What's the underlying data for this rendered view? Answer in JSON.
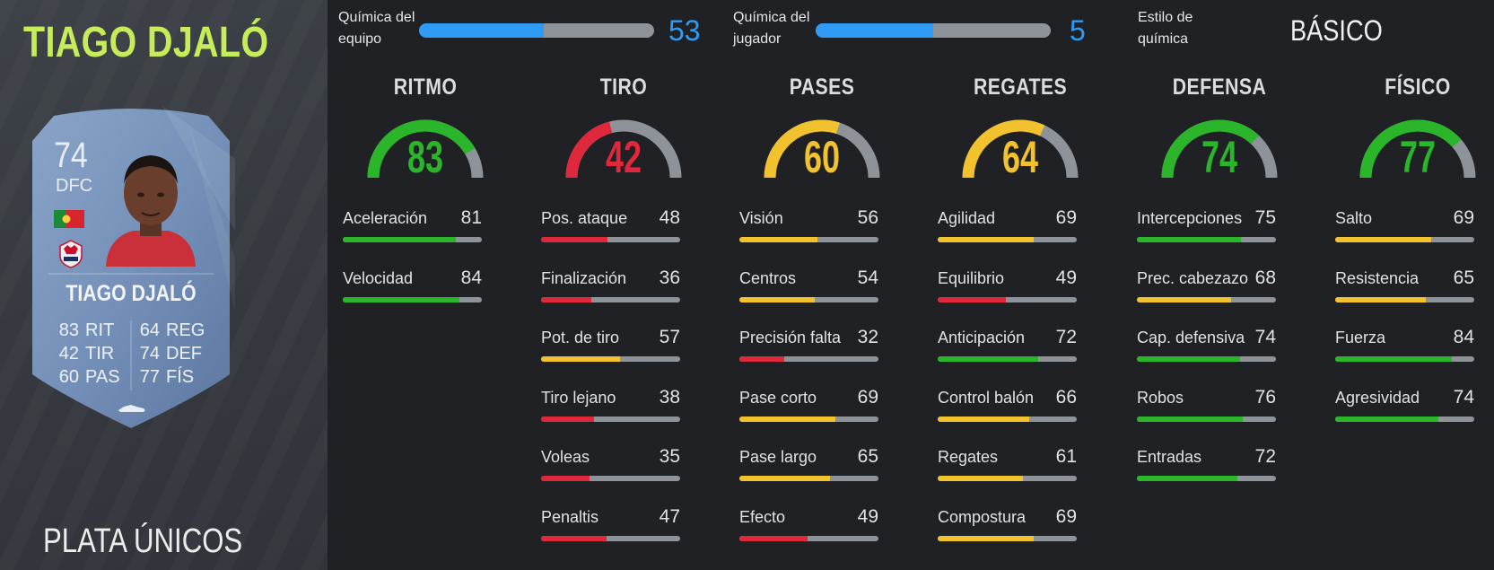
{
  "player": {
    "title": "TIAGO DJALÓ",
    "version": "PLATA ÚNICOS",
    "card": {
      "rating": "74",
      "position": "DFC",
      "name": "TIAGO DJALÓ",
      "flag_icon": "portugal-flag-icon",
      "club_icon": "losc-lille-badge-icon",
      "summary": [
        {
          "val": "83",
          "lbl": "RIT"
        },
        {
          "val": "64",
          "lbl": "REG"
        },
        {
          "val": "42",
          "lbl": "TIR"
        },
        {
          "val": "74",
          "lbl": "DEF"
        },
        {
          "val": "60",
          "lbl": "PAS"
        },
        {
          "val": "77",
          "lbl": "FÍS"
        }
      ]
    }
  },
  "chemistry": {
    "team_label_1": "Química del",
    "team_label_2": "equipo",
    "team_value": "53",
    "team_fill": 0.53,
    "player_label_1": "Química del",
    "player_label_2": "jugador",
    "player_value": "5",
    "player_fill": 0.5,
    "style_label_1": "Estilo de",
    "style_label_2": "química",
    "style_value": "BÁSICO"
  },
  "colors": {
    "green": "#2bb52b",
    "yellow": "#f2c12e",
    "red": "#e0283c",
    "track": "#8e9399",
    "accent_blue": "#2f9bf4",
    "title_green": "#c7ec5a"
  },
  "categories": [
    {
      "title": "RITMO",
      "value": "83",
      "tier": "green",
      "stats": [
        {
          "label": "Aceleración",
          "value": "81"
        },
        {
          "label": "Velocidad",
          "value": "84"
        }
      ]
    },
    {
      "title": "TIRO",
      "value": "42",
      "tier": "red",
      "stats": [
        {
          "label": "Pos. ataque",
          "value": "48"
        },
        {
          "label": "Finalización",
          "value": "36"
        },
        {
          "label": "Pot. de tiro",
          "value": "57"
        },
        {
          "label": "Tiro lejano",
          "value": "38"
        },
        {
          "label": "Voleas",
          "value": "35"
        },
        {
          "label": "Penaltis",
          "value": "47"
        }
      ]
    },
    {
      "title": "PASES",
      "value": "60",
      "tier": "yellow",
      "stats": [
        {
          "label": "Visión",
          "value": "56"
        },
        {
          "label": "Centros",
          "value": "54"
        },
        {
          "label": "Precisión falta",
          "value": "32"
        },
        {
          "label": "Pase corto",
          "value": "69"
        },
        {
          "label": "Pase largo",
          "value": "65"
        },
        {
          "label": "Efecto",
          "value": "49"
        }
      ]
    },
    {
      "title": "REGATES",
      "value": "64",
      "tier": "yellow",
      "stats": [
        {
          "label": "Agilidad",
          "value": "69"
        },
        {
          "label": "Equilibrio",
          "value": "49"
        },
        {
          "label": "Anticipación",
          "value": "72"
        },
        {
          "label": "Control balón",
          "value": "66"
        },
        {
          "label": "Regates",
          "value": "61"
        },
        {
          "label": "Compostura",
          "value": "69"
        }
      ]
    },
    {
      "title": "DEFENSA",
      "value": "74",
      "tier": "green",
      "stats": [
        {
          "label": "Intercepciones",
          "value": "75"
        },
        {
          "label": "Prec. cabezazo",
          "value": "68"
        },
        {
          "label": "Cap. defensiva",
          "value": "74"
        },
        {
          "label": "Robos",
          "value": "76"
        },
        {
          "label": "Entradas",
          "value": "72"
        }
      ]
    },
    {
      "title": "FÍSICO",
      "value": "77",
      "tier": "green",
      "stats": [
        {
          "label": "Salto",
          "value": "69"
        },
        {
          "label": "Resistencia",
          "value": "65"
        },
        {
          "label": "Fuerza",
          "value": "84"
        },
        {
          "label": "Agresividad",
          "value": "74"
        }
      ]
    }
  ]
}
